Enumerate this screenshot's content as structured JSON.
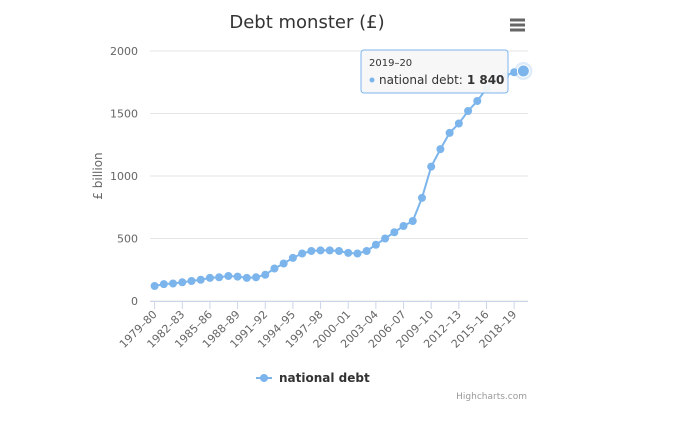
{
  "chart_data": {
    "type": "line",
    "title": "Debt monster (£)",
    "y_axis_title": "£ billion",
    "categories": [
      "1979–80",
      null,
      null,
      "1982–83",
      null,
      null,
      "1985–86",
      null,
      null,
      "1988–89",
      null,
      null,
      "1991–92",
      null,
      null,
      "1994–95",
      null,
      null,
      "1997–98",
      null,
      null,
      "2000–01",
      null,
      null,
      "2003–04",
      null,
      null,
      "2006–07",
      null,
      null,
      "2009–10",
      null,
      null,
      "2012–13",
      null,
      null,
      "2015–16",
      null,
      null,
      "2018–19",
      "2019–20"
    ],
    "series": [
      {
        "name": "national debt",
        "color": "#7cb5ec",
        "values": [
          120,
          135,
          140,
          150,
          160,
          170,
          185,
          190,
          200,
          195,
          185,
          190,
          210,
          260,
          300,
          345,
          380,
          400,
          405,
          405,
          400,
          385,
          380,
          400,
          450,
          500,
          550,
          600,
          640,
          825,
          1075,
          1215,
          1345,
          1420,
          1520,
          1600,
          1700,
          1780,
          1800,
          1830,
          1840
        ]
      }
    ],
    "ylim": [
      0,
      2000
    ],
    "yticks": [
      0,
      500,
      1000,
      1500,
      2000
    ],
    "grid": true,
    "tooltip": {
      "series_text": "national debt:",
      "value_text": "1 840"
    },
    "credits": "Highcharts.com"
  }
}
